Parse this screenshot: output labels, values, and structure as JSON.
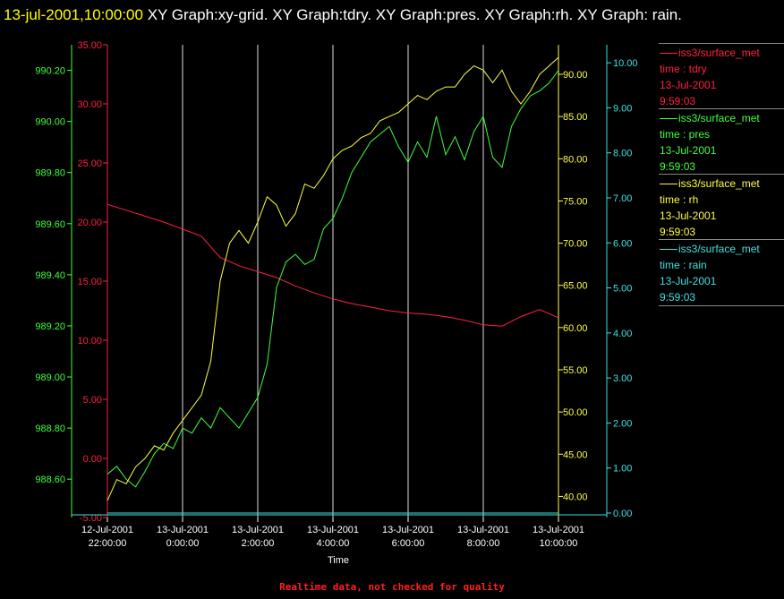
{
  "title": {
    "stamp": "13-jul-2001,10:00:00",
    "text": "  XY Graph:xy-grid.  XY Graph:tdry.  XY Graph:pres.  XY Graph:rh.  XY Graph: rain."
  },
  "footer": "Realtime data, not checked for quality",
  "legend": [
    {
      "name": "iss3/surface_met",
      "var": "time : tdry",
      "date": "13-Jul-2001",
      "time": "9:59:03",
      "color": "#ff2040"
    },
    {
      "name": "iss3/surface_met",
      "var": "time : pres",
      "date": "13-Jul-2001",
      "time": "9:59:03",
      "color": "#40ff40"
    },
    {
      "name": "iss3/surface_met",
      "var": "time : rh",
      "date": "13-Jul-2001",
      "time": "9:59:03",
      "color": "#ffff40"
    },
    {
      "name": "iss3/surface_met",
      "var": "time : rain",
      "date": "13-Jul-2001",
      "time": "9:59:03",
      "color": "#40e0e0"
    }
  ],
  "chart_data": {
    "type": "line",
    "xlabel": "Time",
    "x_range": [
      "12-Jul-2001 22:00:00",
      "13-Jul-2001 10:00:00"
    ],
    "x_ticks": [
      {
        "date": "12-Jul-2001",
        "time": "22:00:00",
        "hours": 0
      },
      {
        "date": "13-Jul-2001",
        "time": "0:00:00",
        "hours": 2
      },
      {
        "date": "13-Jul-2001",
        "time": "2:00:00",
        "hours": 4
      },
      {
        "date": "13-Jul-2001",
        "time": "4:00:00",
        "hours": 6
      },
      {
        "date": "13-Jul-2001",
        "time": "6:00:00",
        "hours": 8
      },
      {
        "date": "13-Jul-2001",
        "time": "8:00:00",
        "hours": 10
      },
      {
        "date": "13-Jul-2001",
        "time": "10:00:00",
        "hours": 12
      }
    ],
    "axes": {
      "tdry": {
        "color": "#ff2040",
        "ylim": [
          -5,
          35
        ],
        "ticks": [
          "-5.00",
          "0.00",
          "5.00",
          "10.00",
          "15.00",
          "20.00",
          "25.00",
          "30.00",
          "35.00"
        ]
      },
      "pres": {
        "color": "#40ff40",
        "ylim": [
          988.45,
          990.3
        ],
        "ticks": [
          "988.60",
          "988.80",
          "989.00",
          "989.20",
          "989.40",
          "989.60",
          "989.80",
          "990.00",
          "990.20"
        ]
      },
      "rh": {
        "color": "#ffff40",
        "ylim": [
          37.5,
          93.5
        ],
        "ticks": [
          "40.00",
          "45.00",
          "50.00",
          "55.00",
          "60.00",
          "65.00",
          "70.00",
          "75.00",
          "80.00",
          "85.00",
          "90.00"
        ]
      },
      "rain": {
        "color": "#40e0e0",
        "ylim": [
          -0.1,
          10.4
        ],
        "ticks": [
          "0.00",
          "1.00",
          "2.00",
          "3.00",
          "4.00",
          "5.00",
          "6.00",
          "7.00",
          "8.00",
          "9.00",
          "10.00"
        ]
      }
    },
    "series": [
      {
        "name": "time : tdry",
        "axis": "tdry",
        "x": [
          0,
          0.5,
          1,
          1.5,
          2,
          2.5,
          3,
          3.5,
          4,
          4.5,
          5,
          5.5,
          6,
          6.5,
          7,
          7.5,
          8,
          8.5,
          9,
          9.5,
          10,
          10.5,
          11,
          11.5,
          12
        ],
        "y": [
          21.5,
          21.0,
          20.5,
          20.0,
          19.4,
          18.8,
          17.0,
          16.3,
          15.8,
          15.3,
          14.6,
          14.0,
          13.5,
          13.1,
          12.8,
          12.5,
          12.3,
          12.2,
          12.0,
          11.7,
          11.3,
          11.2,
          12.0,
          12.6,
          11.9
        ]
      },
      {
        "name": "time : pres",
        "axis": "pres",
        "x": [
          0,
          0.25,
          0.5,
          0.75,
          1,
          1.25,
          1.5,
          1.75,
          2,
          2.25,
          2.5,
          2.75,
          3,
          3.25,
          3.5,
          3.75,
          4,
          4.25,
          4.5,
          4.75,
          5,
          5.25,
          5.5,
          5.75,
          6,
          6.25,
          6.5,
          6.75,
          7,
          7.25,
          7.5,
          7.75,
          8,
          8.25,
          8.5,
          8.75,
          9,
          9.25,
          9.5,
          9.75,
          10,
          10.25,
          10.5,
          10.75,
          11,
          11.25,
          11.5,
          11.75,
          12
        ],
        "y": [
          988.62,
          988.65,
          988.6,
          988.57,
          988.63,
          988.7,
          988.74,
          988.72,
          988.8,
          988.78,
          988.84,
          988.8,
          988.88,
          988.84,
          988.8,
          988.86,
          988.92,
          989.05,
          989.35,
          989.45,
          989.48,
          989.44,
          989.46,
          989.58,
          989.62,
          989.7,
          989.8,
          989.86,
          989.92,
          989.95,
          989.98,
          989.9,
          989.84,
          989.92,
          989.86,
          990.02,
          989.87,
          989.94,
          989.85,
          989.96,
          990.02,
          989.86,
          989.82,
          989.98,
          990.05,
          990.1,
          990.12,
          990.15,
          990.2
        ]
      },
      {
        "name": "time : rh",
        "axis": "rh",
        "x": [
          0,
          0.25,
          0.5,
          0.75,
          1,
          1.25,
          1.5,
          1.75,
          2,
          2.25,
          2.5,
          2.75,
          3,
          3.25,
          3.5,
          3.75,
          4,
          4.25,
          4.5,
          4.75,
          5,
          5.25,
          5.5,
          5.75,
          6,
          6.25,
          6.5,
          6.75,
          7,
          7.25,
          7.5,
          7.75,
          8,
          8.25,
          8.5,
          8.75,
          9,
          9.25,
          9.5,
          9.75,
          10,
          10.25,
          10.5,
          10.75,
          11,
          11.25,
          11.5,
          11.75,
          12
        ],
        "y": [
          39.5,
          42.0,
          41.5,
          43.5,
          44.5,
          46.0,
          45.5,
          47.5,
          49.0,
          50.5,
          52.0,
          56.0,
          65.5,
          70.0,
          71.5,
          70.0,
          72.5,
          75.5,
          74.5,
          72.0,
          73.5,
          77.0,
          76.5,
          78.0,
          80.0,
          81.0,
          81.5,
          82.5,
          83.0,
          84.5,
          85.0,
          85.5,
          86.5,
          87.5,
          87.0,
          88.0,
          88.5,
          88.5,
          90.0,
          91.0,
          90.5,
          89.0,
          90.5,
          88.0,
          86.5,
          88.0,
          90.0,
          91.0,
          92.0
        ]
      },
      {
        "name": "time : rain",
        "axis": "rain",
        "x": [
          0,
          12
        ],
        "y": [
          0,
          0
        ]
      }
    ]
  }
}
